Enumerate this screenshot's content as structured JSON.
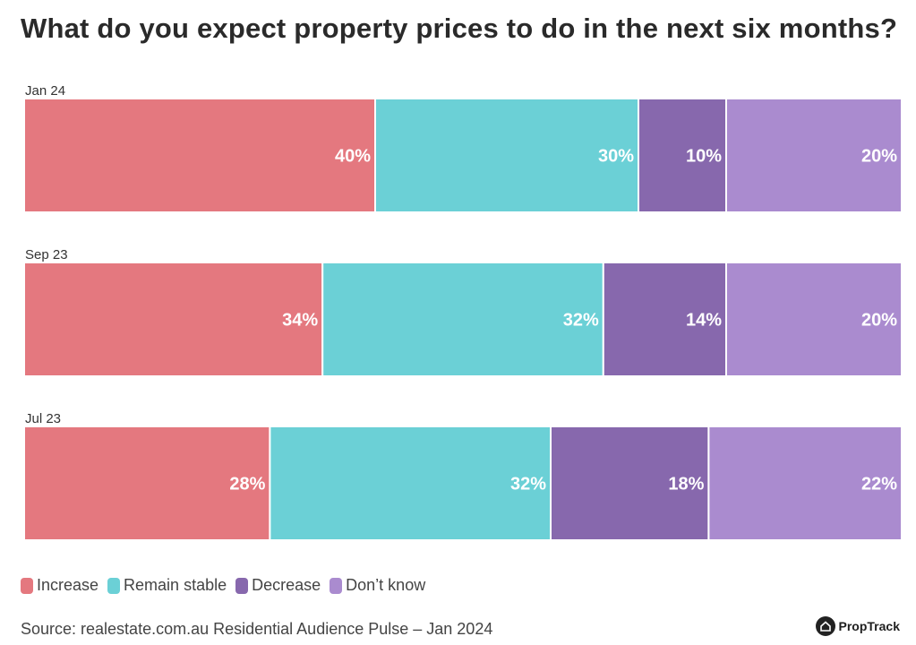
{
  "chart_data": {
    "type": "bar",
    "orientation": "horizontal",
    "stacked": true,
    "title": "What do you expect property prices to do in the next six months?",
    "categories": [
      "Jan 24",
      "Sep 23",
      "Jul 23"
    ],
    "series": [
      {
        "name": "Increase",
        "color": "#e4787f",
        "values": [
          40,
          34,
          28
        ],
        "labels": [
          "40%",
          "34%",
          "28%"
        ]
      },
      {
        "name": "Remain stable",
        "color": "#6bd0d6",
        "values": [
          30,
          32,
          32
        ],
        "labels": [
          "30%",
          "32%",
          "32%"
        ]
      },
      {
        "name": "Decrease",
        "color": "#8768ad",
        "values": [
          10,
          14,
          18
        ],
        "labels": [
          "10%",
          "14%",
          "18%"
        ]
      },
      {
        "name": "Don’t know",
        "color": "#aa8bcf",
        "values": [
          20,
          20,
          22
        ],
        "labels": [
          "20%",
          "20%",
          "22%"
        ]
      }
    ],
    "xlim": [
      0,
      100
    ],
    "grid": false,
    "legend_position": "bottom-left"
  },
  "source": "Source: realestate.com.au Residential Audience Pulse – Jan 2024",
  "brand": {
    "name": "PropTrack"
  }
}
